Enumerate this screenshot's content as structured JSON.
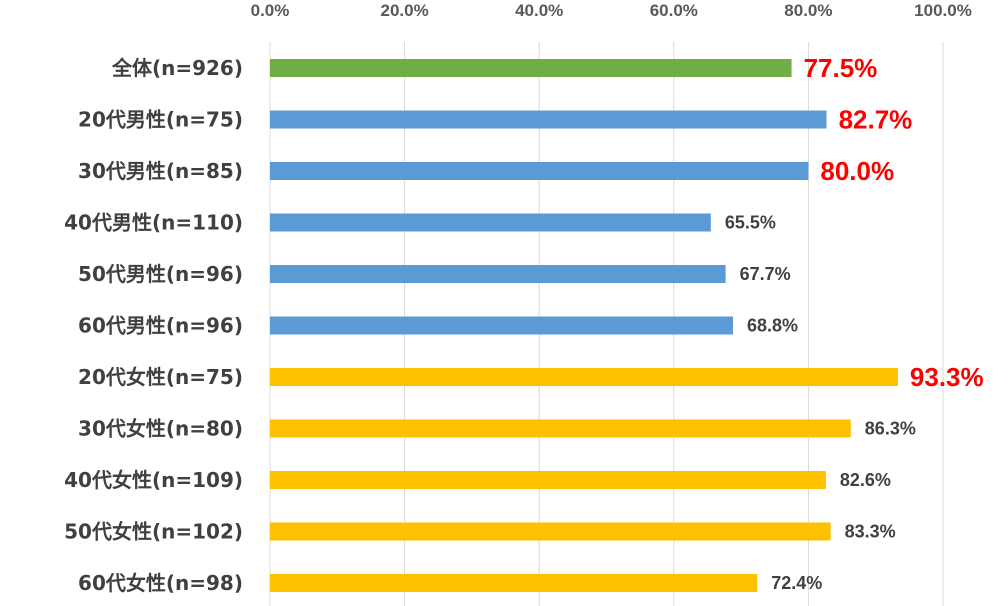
{
  "chart_data": {
    "type": "bar",
    "orientation": "horizontal",
    "title": "",
    "xlabel": "",
    "ylabel": "",
    "xlim": [
      0,
      100
    ],
    "x_ticks": [
      0,
      20,
      40,
      60,
      80,
      100
    ],
    "x_tick_labels": [
      "0.0%",
      "20.0%",
      "40.0%",
      "60.0%",
      "80.0%",
      "100.0%"
    ],
    "x_axis_position": "top",
    "grid": "vertical",
    "legend": "none",
    "categories": [
      "全体(n=926)",
      "20代男性(n=75)",
      "30代男性(n=85)",
      "40代男性(n=110)",
      "50代男性(n=96)",
      "60代男性(n=96)",
      "20代女性(n=75)",
      "30代女性(n=80)",
      "40代女性(n=109)",
      "50代女性(n=102)",
      "60代女性(n=98)"
    ],
    "values": [
      77.5,
      82.7,
      80.0,
      65.5,
      67.7,
      68.8,
      93.3,
      86.3,
      82.6,
      83.3,
      72.4
    ],
    "value_labels": [
      "77.5%",
      "82.7%",
      "80.0%",
      "65.5%",
      "67.7%",
      "68.8%",
      "93.3%",
      "86.3%",
      "82.6%",
      "83.3%",
      "72.4%"
    ],
    "highlighted": [
      true,
      true,
      true,
      false,
      false,
      false,
      true,
      false,
      false,
      false,
      false
    ],
    "bar_colors": [
      "#70ad47",
      "#5b9bd5",
      "#5b9bd5",
      "#5b9bd5",
      "#5b9bd5",
      "#5b9bd5",
      "#ffc000",
      "#ffc000",
      "#ffc000",
      "#ffc000",
      "#ffc000"
    ]
  },
  "colors": {
    "highlight_label": "#ff0000",
    "normal_label": "#404040",
    "gridline": "#d9d9d9"
  }
}
